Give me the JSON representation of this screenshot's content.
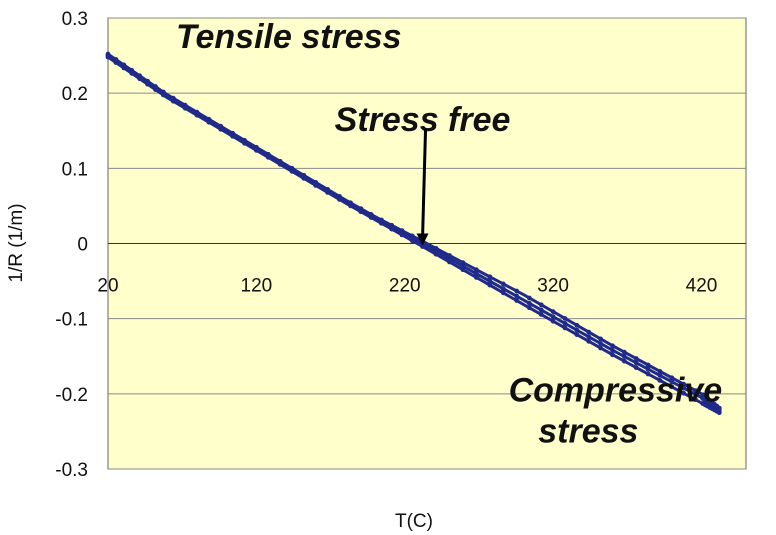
{
  "chart_data": {
    "type": "line",
    "xlabel": "T(C)",
    "ylabel": "1/R (1/m)",
    "xlim": [
      20,
      450
    ],
    "ylim": [
      -0.3,
      0.3
    ],
    "x_ticks": [
      "20",
      "120",
      "220",
      "320",
      "420"
    ],
    "y_ticks": [
      "0.3",
      "0.2",
      "0.1",
      "0",
      "-0.1",
      "-0.2",
      "-0.3"
    ],
    "grid": "horizontal",
    "legend": "none",
    "colors": {
      "plot_background": "#ffffcc",
      "series": "#1f2a8a",
      "gridline": "#8a8a8a"
    },
    "series": [
      {
        "x": [
          20,
          60,
          120,
          180,
          232,
          300,
          360,
          420,
          432
        ],
        "y": [
          0.252,
          0.198,
          0.128,
          0.058,
          0.0,
          -0.075,
          -0.142,
          -0.205,
          -0.222
        ]
      },
      {
        "x": [
          20,
          60,
          120,
          180,
          232,
          300,
          360,
          420,
          432
        ],
        "y": [
          0.248,
          0.194,
          0.124,
          0.054,
          -0.004,
          -0.081,
          -0.148,
          -0.212,
          -0.225
        ]
      },
      {
        "x": [
          20,
          60,
          120,
          180,
          232,
          300,
          360,
          420,
          432
        ],
        "y": [
          0.25,
          0.196,
          0.125,
          0.056,
          0.003,
          -0.068,
          -0.136,
          -0.2,
          -0.219
        ]
      }
    ],
    "annotations": [
      {
        "text": "Tensile stress",
        "x": 20,
        "y": 0.26
      },
      {
        "text": "Stress free",
        "x": 232,
        "y": 0.15
      },
      {
        "text": "Compressive",
        "x": 290,
        "y": -0.21
      },
      {
        "text": "stress",
        "x": 310,
        "y": -0.265
      }
    ],
    "arrow": {
      "from": [
        232,
        0.11
      ],
      "to": [
        232,
        0.0
      ]
    }
  }
}
